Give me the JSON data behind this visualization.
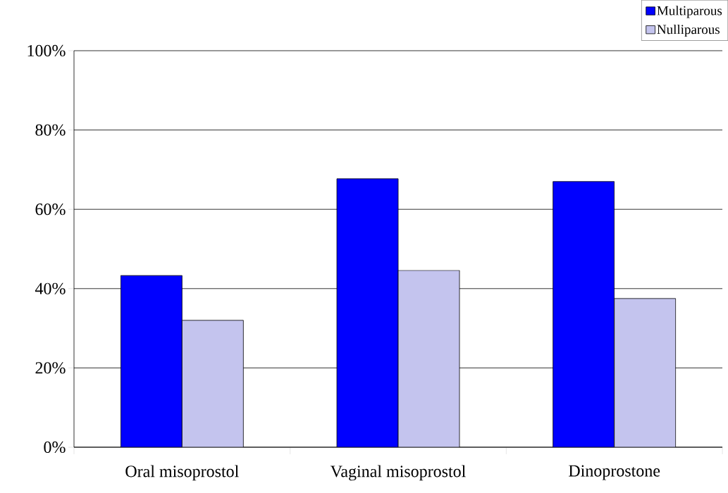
{
  "chart_data": {
    "type": "bar",
    "categories": [
      "Oral misoprostol",
      "Vaginal misoprostol",
      "Dinoprostone"
    ],
    "series": [
      {
        "name": "Multiparous",
        "color": "#0000ff",
        "values": [
          43.3,
          67.7,
          67.0
        ]
      },
      {
        "name": "Nulliparous",
        "color": "#c4c4ee",
        "values": [
          32.0,
          44.6,
          37.5
        ]
      }
    ],
    "ylim": [
      0,
      100
    ],
    "yticks": [
      {
        "value": 0,
        "label": "0%"
      },
      {
        "value": 20,
        "label": "20%"
      },
      {
        "value": 40,
        "label": "40%"
      },
      {
        "value": 60,
        "label": "60%"
      },
      {
        "value": 80,
        "label": "80%"
      },
      {
        "value": 100,
        "label": "100%"
      }
    ],
    "grid": "y",
    "legend": "top right"
  }
}
